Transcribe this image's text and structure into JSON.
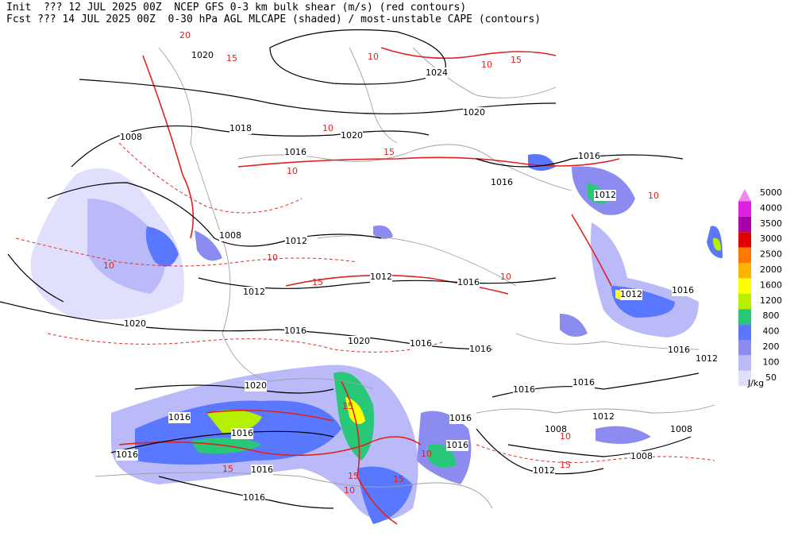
{
  "header": {
    "line1": "Init  ??? 12 JUL 2025 00Z  NCEP GFS 0-3 km bulk shear (m/s) (red contours)",
    "line2": "Fcst ??? 14 JUL 2025 00Z  0-30 hPa AGL MLCAPE (shaded) / most-unstable CAPE (contours)"
  },
  "legend": {
    "items": [
      {
        "label": "5000",
        "color": "#f088f0"
      },
      {
        "label": "4000",
        "color": "#e020e0"
      },
      {
        "label": "3500",
        "color": "#a800a8"
      },
      {
        "label": "3000",
        "color": "#e00000"
      },
      {
        "label": "2500",
        "color": "#ff7800"
      },
      {
        "label": "2000",
        "color": "#ffb400"
      },
      {
        "label": "1600",
        "color": "#ffff00"
      },
      {
        "label": "1200",
        "color": "#b4f000"
      },
      {
        "label": "800",
        "color": "#28c878"
      },
      {
        "label": "400",
        "color": "#5a78ff"
      },
      {
        "label": "200",
        "color": "#8c8cf0"
      },
      {
        "label": "100",
        "color": "#babaf8"
      },
      {
        "label": "50",
        "color": "#e0e0fc"
      }
    ],
    "unit": "J/kg"
  },
  "isobar_labels": [
    "1020",
    "1024",
    "1018",
    "1008",
    "1020",
    "1020",
    "1016",
    "1016",
    "1016",
    "1012",
    "1008",
    "1012",
    "1012",
    "1016",
    "1012",
    "1012",
    "1016",
    "1020",
    "1016",
    "1020",
    "1016",
    "1016",
    "1016",
    "1012",
    "1020",
    "1016",
    "1016",
    "1016",
    "1016",
    "1012",
    "1016",
    "1008",
    "1008",
    "1016",
    "1016",
    "1008",
    "1016",
    "1012",
    "1016"
  ],
  "shear_labels": [
    "20",
    "15",
    "10",
    "10",
    "15",
    "10",
    "15",
    "10",
    "10",
    "10",
    "15",
    "10",
    "15",
    "10",
    "15",
    "15",
    "10",
    "15",
    "10",
    "10",
    "15"
  ]
}
